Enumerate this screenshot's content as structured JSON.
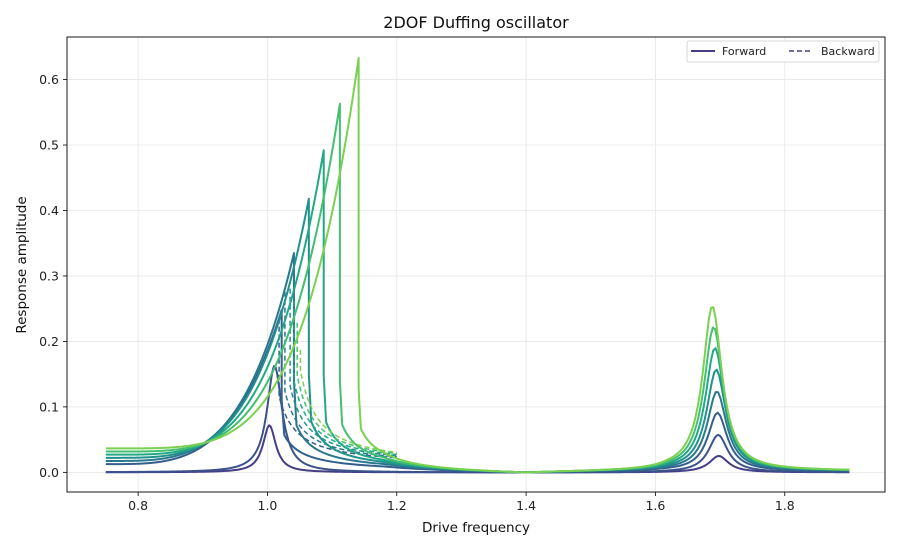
{
  "chart_data": {
    "type": "line",
    "title": "2DOF Duffing oscillator",
    "xlabel": "Drive frequency",
    "ylabel": "Response amplitude",
    "xlim": [
      0.69,
      1.955
    ],
    "ylim": [
      -0.03,
      0.665
    ],
    "xticks": [
      0.8,
      1.0,
      1.2,
      1.4,
      1.6,
      1.8
    ],
    "yticks": [
      0.0,
      0.1,
      0.2,
      0.3,
      0.4,
      0.5,
      0.6
    ],
    "grid": true,
    "legend": {
      "placement": "top-right",
      "entries": [
        {
          "label": "Forward",
          "style": "solid"
        },
        {
          "label": "Backward",
          "style": "dashed"
        }
      ]
    },
    "x_range": [
      0.75,
      1.9
    ],
    "antiresonance_x": 1.4,
    "series": [
      {
        "color": "#433e85",
        "peak1": {
          "x": 1.003,
          "y": 0.072
        },
        "peak2": {
          "x": 1.698,
          "y": 0.025
        },
        "jump_forward": null,
        "jump_backward": null
      },
      {
        "color": "#3b528b",
        "peak1": {
          "x": 1.011,
          "y": 0.163
        },
        "peak2": {
          "x": 1.697,
          "y": 0.057
        },
        "jump_forward": null,
        "jump_backward": null
      },
      {
        "color": "#335f8d",
        "peak1": {
          "x": 1.022,
          "y": 0.248
        },
        "peak2": {
          "x": 1.696,
          "y": 0.089
        },
        "jump_forward": 1.022,
        "jump_backward": 1.018
      },
      {
        "color": "#2a788e",
        "peak1": {
          "x": 1.041,
          "y": 0.335
        },
        "peak2": {
          "x": 1.695,
          "y": 0.121
        },
        "jump_forward": 1.041,
        "jump_backward": 1.027
      },
      {
        "color": "#21918c",
        "peak1": {
          "x": 1.064,
          "y": 0.418
        },
        "peak2": {
          "x": 1.694,
          "y": 0.154
        },
        "jump_forward": 1.064,
        "jump_backward": 1.035
      },
      {
        "color": "#22a884",
        "peak1": {
          "x": 1.087,
          "y": 0.492
        },
        "peak2": {
          "x": 1.692,
          "y": 0.187
        },
        "jump_forward": 1.087,
        "jump_backward": 1.041
      },
      {
        "color": "#44bf70",
        "peak1": {
          "x": 1.112,
          "y": 0.563
        },
        "peak2": {
          "x": 1.69,
          "y": 0.219
        },
        "jump_forward": 1.112,
        "jump_backward": 1.046
      },
      {
        "color": "#7ad151",
        "peak1": {
          "x": 1.141,
          "y": 0.633
        },
        "peak2": {
          "x": 1.688,
          "y": 0.251
        },
        "jump_forward": 1.141,
        "jump_backward": 1.051
      }
    ]
  }
}
